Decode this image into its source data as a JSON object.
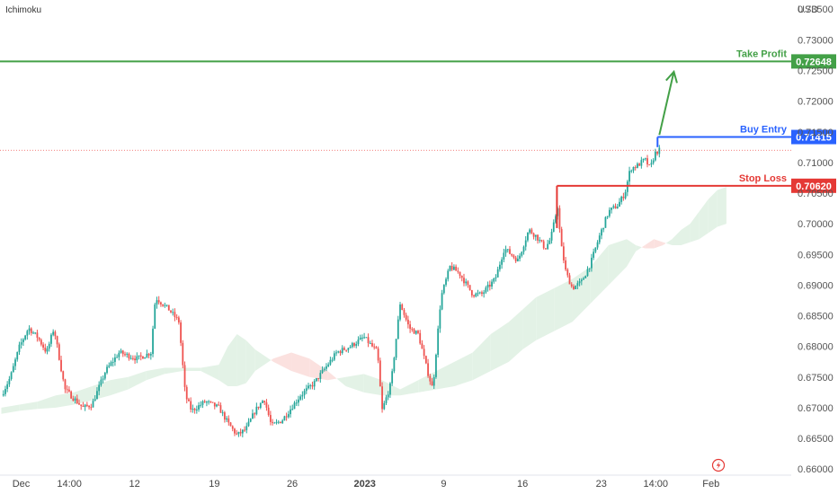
{
  "chart_data": {
    "type": "candlestick",
    "indicator": "Ichimoku",
    "currency": "USD",
    "ylim": [
      0.659,
      0.7365
    ],
    "y_ticks": [
      "0.66000",
      "0.66500",
      "0.67000",
      "0.67500",
      "0.68000",
      "0.68500",
      "0.69000",
      "0.69500",
      "0.70000",
      "0.70500",
      "0.71000",
      "0.71500",
      "0.72000",
      "0.72500",
      "0.73000",
      "0.73500"
    ],
    "x_ticks": [
      {
        "label": "Dec",
        "x": 0.2,
        "bold": false
      },
      {
        "label": "14:00",
        "x": 7.5,
        "bold": false
      },
      {
        "label": "12",
        "x": 14.7,
        "bold": false
      },
      {
        "label": "19",
        "x": 23.5,
        "bold": false
      },
      {
        "label": "26",
        "x": 32.1,
        "bold": false
      },
      {
        "label": "2023",
        "x": 40.1,
        "bold": true
      },
      {
        "label": "9",
        "x": 48.8,
        "bold": false
      },
      {
        "label": "16",
        "x": 57.5,
        "bold": false
      },
      {
        "label": "23",
        "x": 66.2,
        "bold": false
      },
      {
        "label": "14:00",
        "x": 72.2,
        "bold": false
      },
      {
        "label": "Feb",
        "x": 78.3,
        "bold": false
      }
    ],
    "last_price": 0.712,
    "levels": [
      {
        "name": "Take Profit",
        "value_label": "0.72648",
        "value": 0.72648,
        "color": "#43a047",
        "x_start": -2
      },
      {
        "name": "Buy Entry",
        "value_label": "0.71415",
        "value": 0.71415,
        "color": "#2962ff",
        "x_start": 72.4
      },
      {
        "name": "Stop Loss",
        "value_label": "0.70620",
        "value": 0.7062,
        "color": "#e53935",
        "x_start": 61.3
      }
    ],
    "arrow": {
      "from_x": 72.6,
      "from_y": 0.7145,
      "to_x": 74.2,
      "to_y": 0.7248,
      "color": "#43a047"
    },
    "anchors": [
      [
        -2,
        0.6725
      ],
      [
        0,
        0.672
      ],
      [
        1,
        0.675
      ],
      [
        2,
        0.68
      ],
      [
        3,
        0.683
      ],
      [
        4,
        0.6815
      ],
      [
        5,
        0.679
      ],
      [
        5.8,
        0.683
      ],
      [
        7,
        0.673
      ],
      [
        8,
        0.6715
      ],
      [
        9,
        0.67
      ],
      [
        10,
        0.6705
      ],
      [
        11.5,
        0.676
      ],
      [
        13,
        0.679
      ],
      [
        15,
        0.678
      ],
      [
        16.5,
        0.679
      ],
      [
        17,
        0.688
      ],
      [
        18.5,
        0.686
      ],
      [
        19.6,
        0.684
      ],
      [
        20.3,
        0.672
      ],
      [
        21,
        0.6695
      ],
      [
        22.5,
        0.671
      ],
      [
        24,
        0.67
      ],
      [
        25,
        0.6675
      ],
      [
        26,
        0.6655
      ],
      [
        27,
        0.6665
      ],
      [
        28,
        0.6695
      ],
      [
        29,
        0.6715
      ],
      [
        29.8,
        0.667
      ],
      [
        31,
        0.668
      ],
      [
        32,
        0.67
      ],
      [
        33,
        0.672
      ],
      [
        34.5,
        0.674
      ],
      [
        35.5,
        0.676
      ],
      [
        37,
        0.679
      ],
      [
        38.5,
        0.68
      ],
      [
        40,
        0.6815
      ],
      [
        41.5,
        0.679
      ],
      [
        42,
        0.6695
      ],
      [
        43,
        0.674
      ],
      [
        44,
        0.687
      ],
      [
        45,
        0.683
      ],
      [
        46,
        0.682
      ],
      [
        47,
        0.676
      ],
      [
        47.6,
        0.673
      ],
      [
        48.5,
        0.688
      ],
      [
        49.5,
        0.693
      ],
      [
        50.5,
        0.692
      ],
      [
        52,
        0.6885
      ],
      [
        53,
        0.6885
      ],
      [
        54.5,
        0.691
      ],
      [
        55.5,
        0.696
      ],
      [
        57,
        0.694
      ],
      [
        58.2,
        0.699
      ],
      [
        59,
        0.698
      ],
      [
        60,
        0.696
      ],
      [
        60.6,
        0.6975
      ],
      [
        61.4,
        0.703
      ],
      [
        61.7,
        0.697
      ],
      [
        62.3,
        0.692
      ],
      [
        63,
        0.6895
      ],
      [
        64,
        0.6905
      ],
      [
        65,
        0.6935
      ],
      [
        66,
        0.698
      ],
      [
        67,
        0.702
      ],
      [
        68,
        0.703
      ],
      [
        68.8,
        0.705
      ],
      [
        69.4,
        0.709
      ],
      [
        70.2,
        0.7095
      ],
      [
        71,
        0.7105
      ],
      [
        71.6,
        0.709
      ],
      [
        72.1,
        0.7115
      ],
      [
        72.6,
        0.712
      ]
    ],
    "cloud_span_a": [
      [
        0,
        0.67
      ],
      [
        2,
        0.6705
      ],
      [
        4,
        0.671
      ],
      [
        6,
        0.672
      ],
      [
        8,
        0.6725
      ],
      [
        10,
        0.6735
      ],
      [
        12,
        0.6745
      ],
      [
        14,
        0.675
      ],
      [
        16,
        0.676
      ],
      [
        18,
        0.6765
      ],
      [
        20,
        0.6765
      ],
      [
        22,
        0.6765
      ],
      [
        24,
        0.677
      ],
      [
        25,
        0.68
      ],
      [
        26,
        0.682
      ],
      [
        27,
        0.681
      ],
      [
        28,
        0.6795
      ],
      [
        30,
        0.6775
      ],
      [
        32,
        0.676
      ],
      [
        34,
        0.675
      ],
      [
        36,
        0.6745
      ],
      [
        38,
        0.675
      ],
      [
        40,
        0.6755
      ],
      [
        42,
        0.6745
      ],
      [
        44,
        0.673
      ],
      [
        46,
        0.6745
      ],
      [
        48,
        0.676
      ],
      [
        50,
        0.6775
      ],
      [
        52,
        0.679
      ],
      [
        54,
        0.682
      ],
      [
        56,
        0.684
      ],
      [
        57.5,
        0.686
      ],
      [
        59,
        0.688
      ],
      [
        61,
        0.6895
      ],
      [
        63,
        0.691
      ],
      [
        65,
        0.693
      ],
      [
        67,
        0.6965
      ],
      [
        69,
        0.6975
      ],
      [
        70,
        0.6965
      ],
      [
        71,
        0.696
      ],
      [
        72,
        0.696
      ],
      [
        73,
        0.6965
      ],
      [
        74,
        0.6975
      ],
      [
        75,
        0.699
      ],
      [
        76,
        0.7
      ],
      [
        77,
        0.702
      ],
      [
        78,
        0.704
      ],
      [
        79,
        0.7055
      ],
      [
        80,
        0.706
      ]
    ],
    "cloud_span_b": [
      [
        0,
        0.669
      ],
      [
        2,
        0.6695
      ],
      [
        4,
        0.6698
      ],
      [
        6,
        0.67
      ],
      [
        8,
        0.6705
      ],
      [
        10,
        0.6712
      ],
      [
        12,
        0.672
      ],
      [
        14,
        0.673
      ],
      [
        16,
        0.6745
      ],
      [
        18,
        0.6755
      ],
      [
        20,
        0.676
      ],
      [
        22,
        0.676
      ],
      [
        24,
        0.6745
      ],
      [
        25,
        0.6735
      ],
      [
        26,
        0.6735
      ],
      [
        27,
        0.674
      ],
      [
        28,
        0.676
      ],
      [
        30,
        0.678
      ],
      [
        32,
        0.679
      ],
      [
        34,
        0.678
      ],
      [
        36,
        0.676
      ],
      [
        38,
        0.6735
      ],
      [
        40,
        0.6725
      ],
      [
        42,
        0.672
      ],
      [
        44,
        0.672
      ],
      [
        46,
        0.6725
      ],
      [
        48,
        0.673
      ],
      [
        50,
        0.6735
      ],
      [
        52,
        0.6745
      ],
      [
        54,
        0.676
      ],
      [
        56,
        0.6775
      ],
      [
        57.5,
        0.6795
      ],
      [
        59,
        0.681
      ],
      [
        61,
        0.6825
      ],
      [
        63,
        0.684
      ],
      [
        65,
        0.687
      ],
      [
        67,
        0.69
      ],
      [
        69,
        0.693
      ],
      [
        70,
        0.6955
      ],
      [
        71,
        0.6965
      ],
      [
        72,
        0.6975
      ],
      [
        73,
        0.697
      ],
      [
        74,
        0.6965
      ],
      [
        75,
        0.6965
      ],
      [
        76,
        0.697
      ],
      [
        77,
        0.6975
      ],
      [
        78,
        0.6985
      ],
      [
        79,
        0.6995
      ],
      [
        80,
        0.7
      ]
    ],
    "colors": {
      "bull": "#26a69a",
      "bear": "#ef5350",
      "cloud_bull": "#e3f2e6",
      "cloud_bear": "#fbe1df",
      "axis_text": "#555555",
      "last_price_line": "#ef5350"
    },
    "lightning_icon": "lightning-icon"
  }
}
